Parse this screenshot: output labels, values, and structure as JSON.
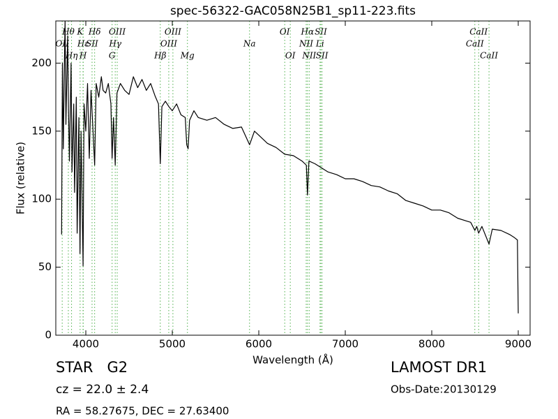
{
  "chart_data": {
    "type": "line",
    "title": "spec-56322-GAC058N25B1_sp11-223.fits",
    "x_label": "Wavelength (Å)",
    "y_label": "Flux (relative)",
    "xlim": [
      3653,
      9137
    ],
    "ylim": [
      0,
      231
    ],
    "xticks": [
      4000,
      5000,
      6000,
      7000,
      8000,
      9000
    ],
    "yticks": [
      0,
      50,
      100,
      150,
      200
    ],
    "grid": false,
    "series": [
      {
        "name": "flux",
        "color": "#000000",
        "x": [
          3720,
          3730,
          3740,
          3750,
          3760,
          3770,
          3790,
          3800,
          3810,
          3830,
          3840,
          3860,
          3870,
          3890,
          3900,
          3920,
          3933,
          3945,
          3968,
          3980,
          4000,
          4020,
          4040,
          4060,
          4080,
          4102,
          4120,
          4150,
          4180,
          4200,
          4230,
          4260,
          4290,
          4304,
          4320,
          4340,
          4360,
          4400,
          4450,
          4500,
          4550,
          4600,
          4650,
          4700,
          4750,
          4800,
          4840,
          4861,
          4880,
          4920,
          4960,
          5000,
          5050,
          5100,
          5150,
          5167,
          5183,
          5200,
          5250,
          5300,
          5400,
          5500,
          5600,
          5700,
          5800,
          5893,
          5950,
          6000,
          6100,
          6200,
          6300,
          6400,
          6500,
          6550,
          6563,
          6580,
          6650,
          6700,
          6800,
          6900,
          7000,
          7100,
          7200,
          7300,
          7400,
          7500,
          7600,
          7700,
          7800,
          7900,
          8000,
          8100,
          8200,
          8300,
          8400,
          8450,
          8498,
          8520,
          8542,
          8580,
          8662,
          8700,
          8800,
          8900,
          8950,
          8990,
          9000
        ],
        "values": [
          74,
          200,
          137,
          190,
          231,
          155,
          220,
          165,
          128,
          200,
          120,
          170,
          105,
          175,
          75,
          160,
          60,
          150,
          51,
          170,
          150,
          185,
          130,
          180,
          155,
          125,
          185,
          175,
          190,
          180,
          178,
          185,
          170,
          130,
          160,
          125,
          178,
          185,
          180,
          177,
          190,
          182,
          188,
          180,
          185,
          176,
          170,
          126,
          168,
          172,
          168,
          165,
          170,
          162,
          160,
          140,
          137,
          158,
          165,
          160,
          158,
          160,
          155,
          152,
          153,
          140,
          150,
          147,
          141,
          138,
          133,
          132,
          128,
          125,
          103,
          128,
          126,
          124,
          120,
          118,
          115,
          115,
          113,
          110,
          109,
          106,
          104,
          99,
          97,
          95,
          92,
          92,
          90,
          86,
          84,
          83,
          77,
          80,
          75,
          80,
          67,
          78,
          77,
          74,
          72,
          70,
          16
        ]
      }
    ],
    "line_color": "#4daf4a",
    "lines": [
      {
        "label": "Hθ",
        "x": 3798
      },
      {
        "label": "OII",
        "x": 3727
      },
      {
        "label": "Hη",
        "x": 3835
      },
      {
        "label": "K",
        "x": 3934
      },
      {
        "label": "Hε",
        "x": 3970
      },
      {
        "label": "H",
        "x": 3968
      },
      {
        "label": "Hδ",
        "x": 4102
      },
      {
        "label": "SII",
        "x": 4072
      },
      {
        "label": "G",
        "x": 4304
      },
      {
        "label": "OIII",
        "x": 4363
      },
      {
        "label": "Hγ",
        "x": 4340
      },
      {
        "label": "Hβ",
        "x": 4861
      },
      {
        "label": "OIII",
        "x": 5007
      },
      {
        "label": "OIII",
        "x": 4959
      },
      {
        "label": "Mg",
        "x": 5175
      },
      {
        "label": "OI",
        "x": 6300
      },
      {
        "label": "Na",
        "x": 5893
      },
      {
        "label": "OI",
        "x": 6364
      },
      {
        "label": "Hα",
        "x": 6563
      },
      {
        "label": "NII",
        "x": 6548
      },
      {
        "label": "NII",
        "x": 6583
      },
      {
        "label": "SII",
        "x": 6717
      },
      {
        "label": "Li",
        "x": 6708
      },
      {
        "label": "SII",
        "x": 6731
      },
      {
        "label": "CaII",
        "x": 8542
      },
      {
        "label": "CaII",
        "x": 8498
      },
      {
        "label": "CaII",
        "x": 8662
      }
    ],
    "info": {
      "object": "STAR   G2",
      "cz": "cz = 22.0 ± 2.4",
      "coords": "RA = 58.27675, DEC = 27.63400",
      "survey": "LAMOST DR1",
      "date": "Obs-Date:20130129"
    }
  }
}
